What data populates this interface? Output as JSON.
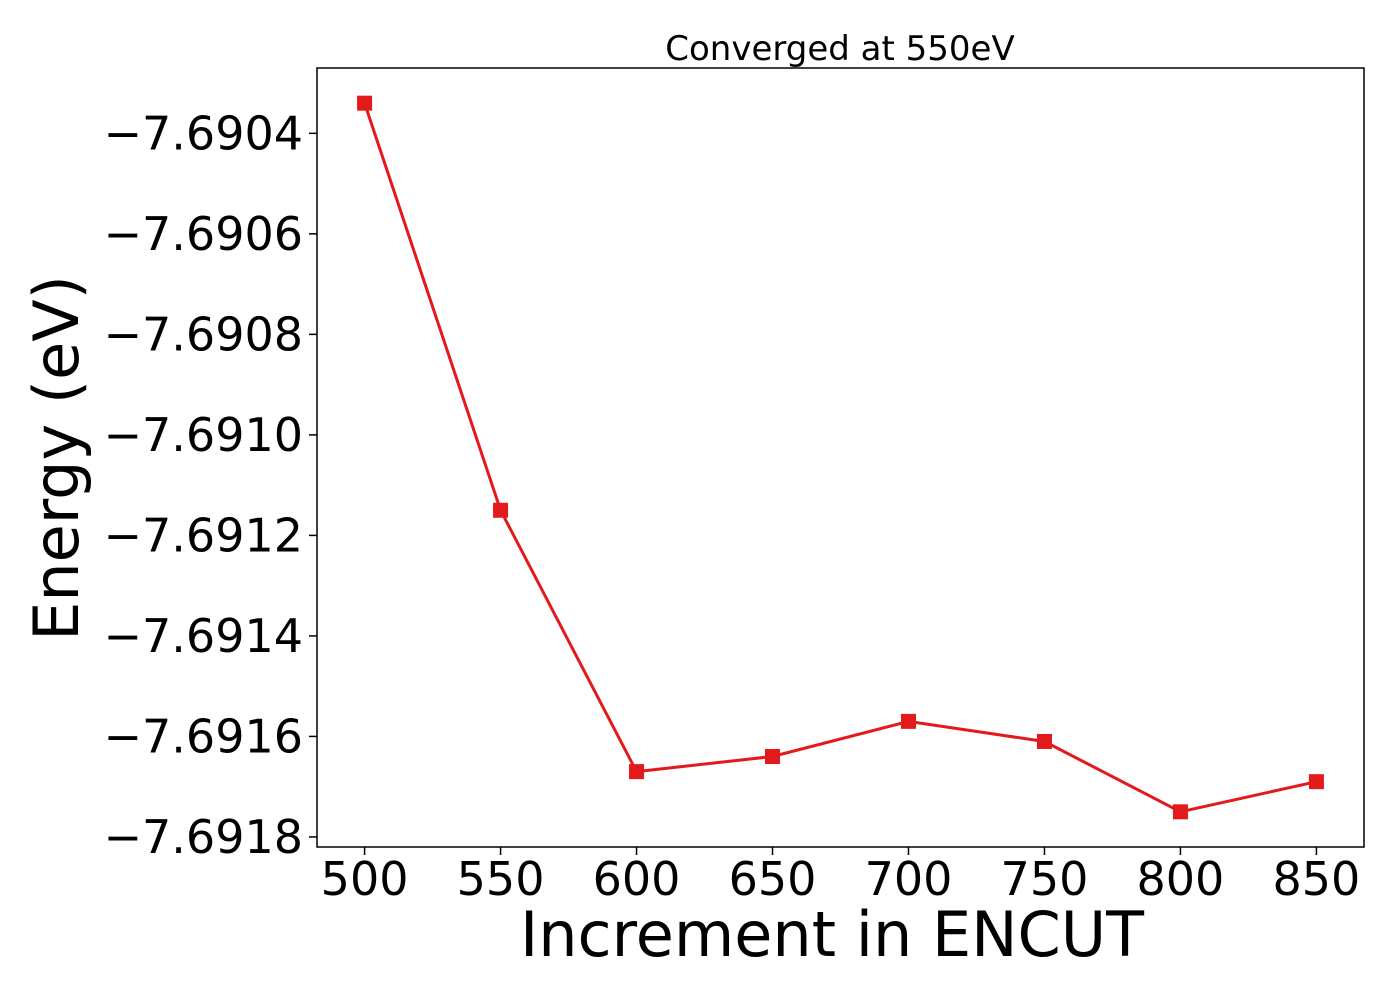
{
  "chart_data": {
    "type": "line",
    "title": "Converged at 550eV",
    "xlabel": "Increment in ENCUT",
    "ylabel": "Energy (eV)",
    "x": [
      500,
      550,
      600,
      650,
      700,
      750,
      800,
      850
    ],
    "series": [
      {
        "values": [
          -7.69034,
          -7.69115,
          -7.69167,
          -7.69164,
          -7.69157,
          -7.69161,
          -7.69175,
          -7.69169
        ],
        "color": "#e31a1c",
        "marker": "square"
      }
    ],
    "xticks": [
      500,
      550,
      600,
      650,
      700,
      750,
      800,
      850
    ],
    "xtick_labels": [
      "500",
      "550",
      "600",
      "650",
      "700",
      "750",
      "800",
      "850"
    ],
    "yticks": [
      -7.6918,
      -7.6916,
      -7.6914,
      -7.6912,
      -7.691,
      -7.6908,
      -7.6906,
      -7.6904
    ],
    "ytick_labels": [
      "−7.6918",
      "−7.6916",
      "−7.6914",
      "−7.6912",
      "−7.6910",
      "−7.6908",
      "−7.6906",
      "−7.6904"
    ],
    "xlim": [
      482.5,
      867.5
    ],
    "ylim": [
      -7.69182,
      -7.69027
    ],
    "grid": false,
    "legend": "none"
  }
}
